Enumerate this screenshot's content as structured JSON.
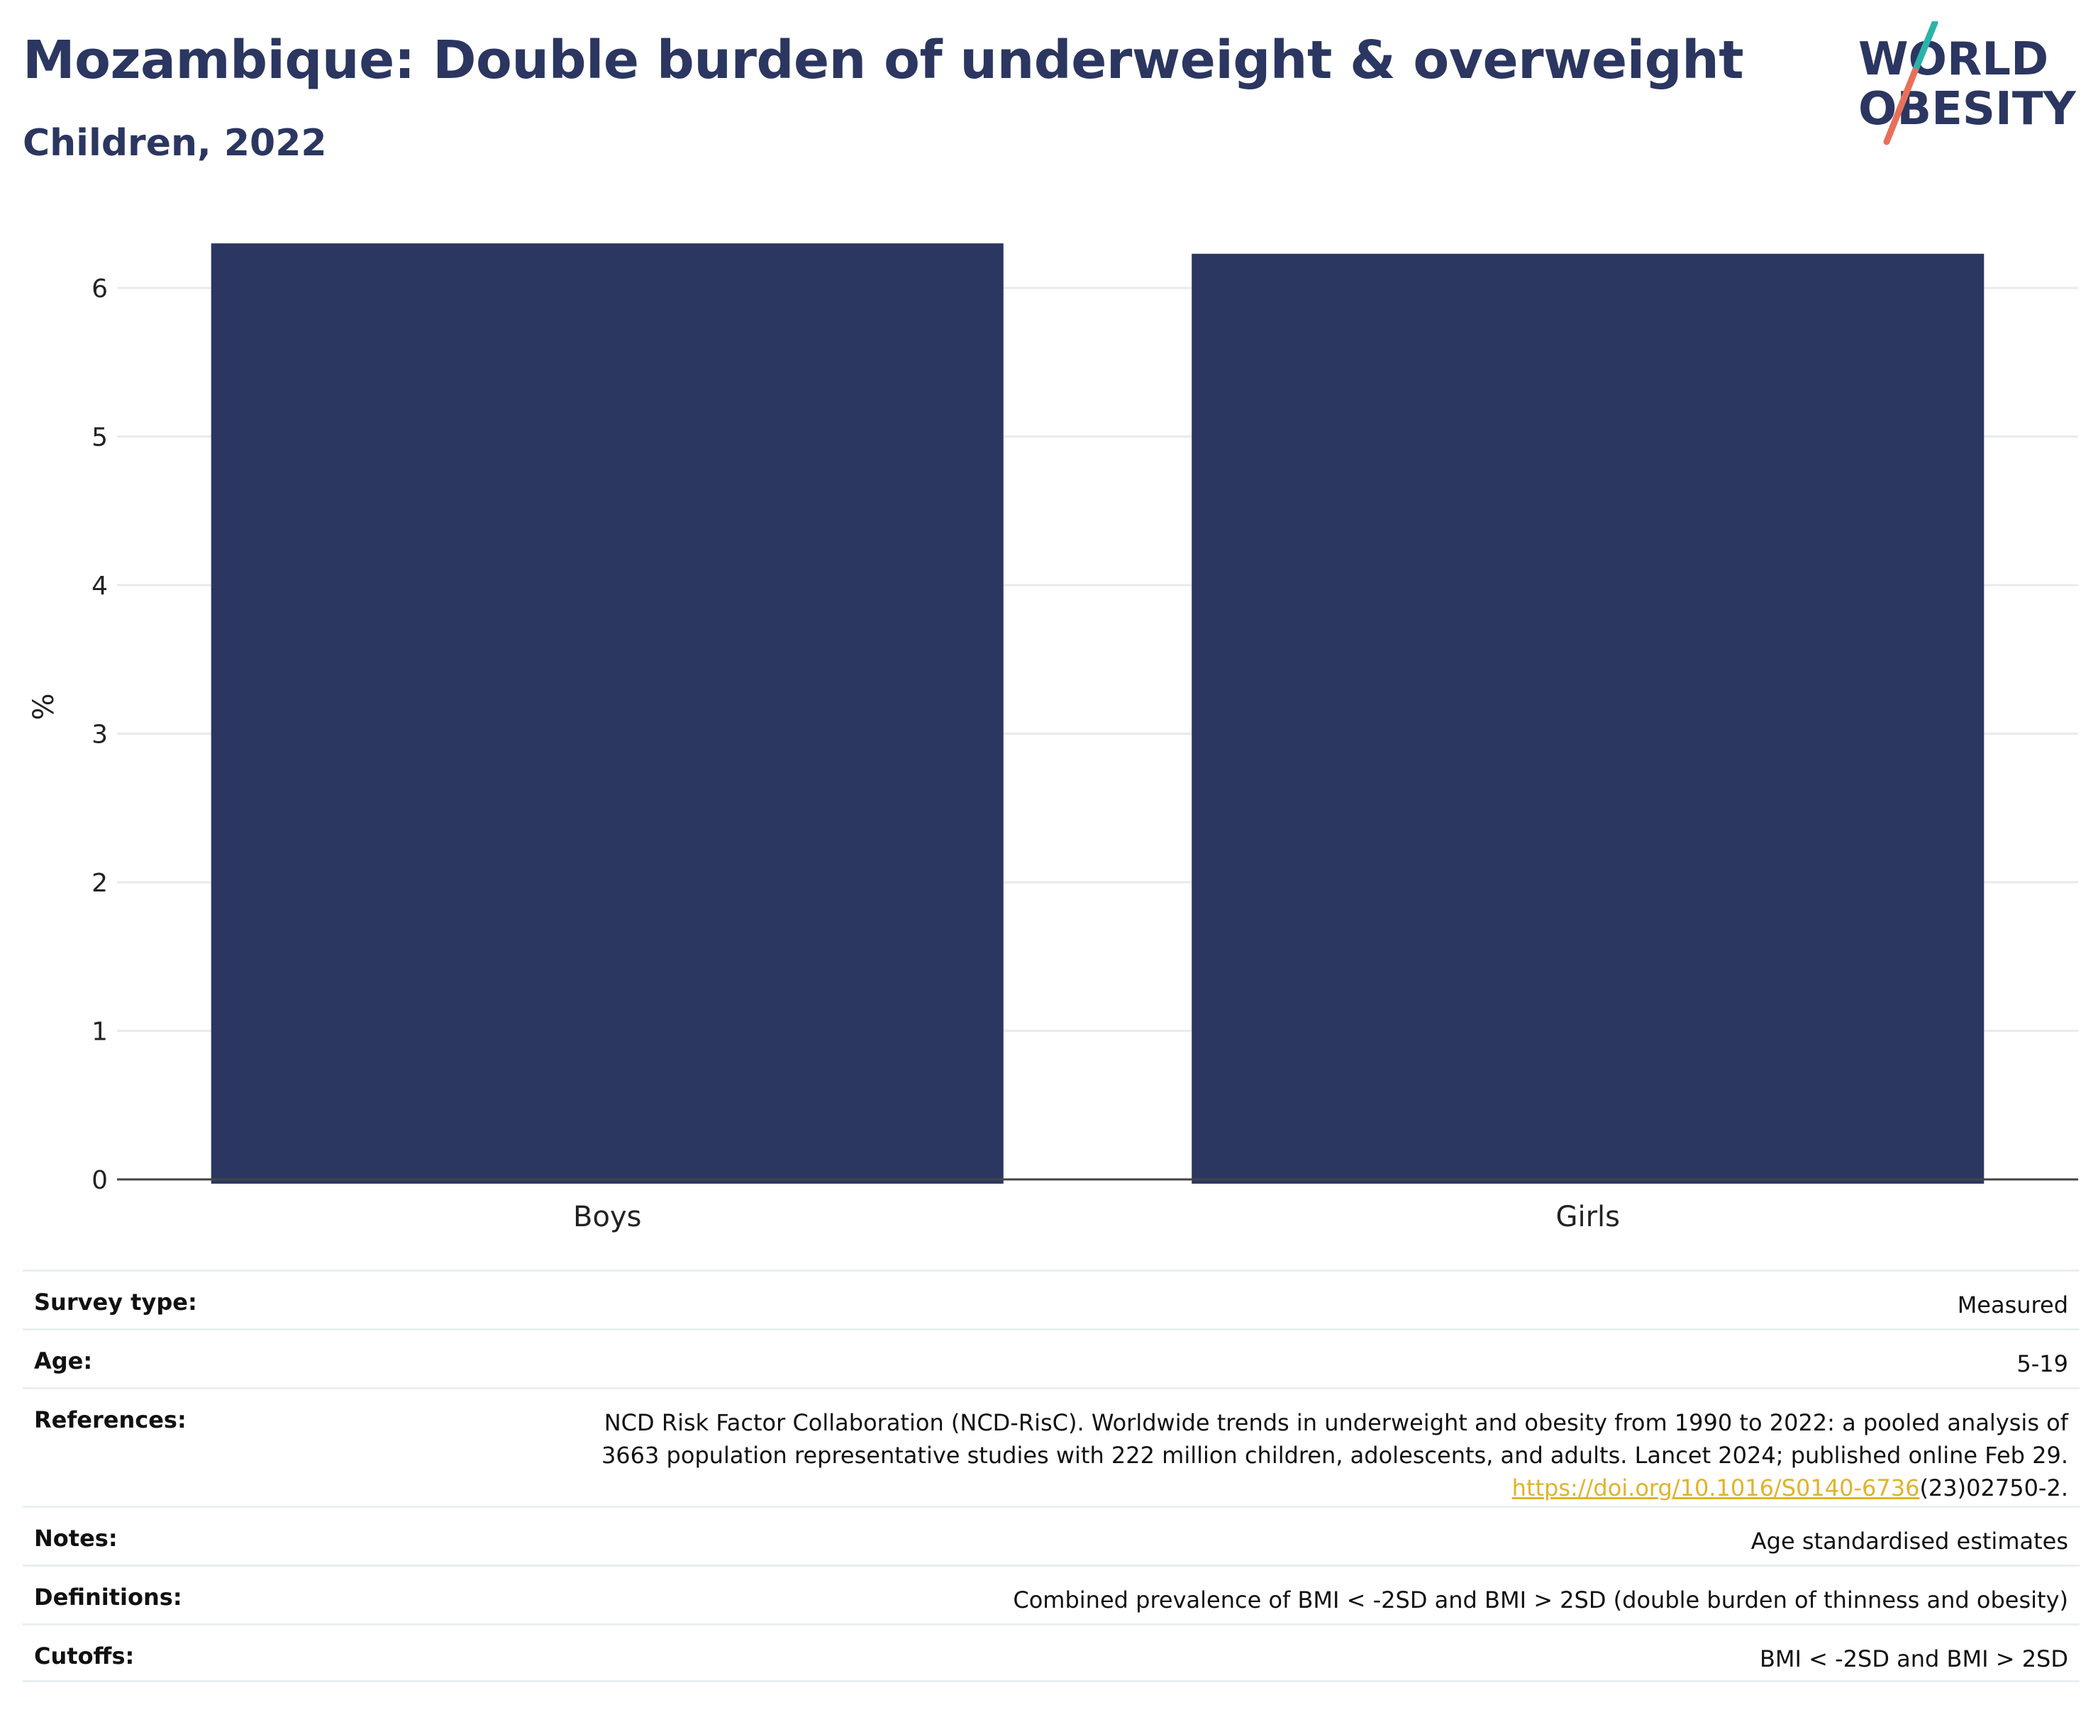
{
  "header": {
    "title": "Mozambique: Double burden of underweight & overweight",
    "subtitle": "Children, 2022"
  },
  "logo": {
    "line1": "WORLD",
    "line2": "OBESITY",
    "colors": {
      "text": "#2b3661",
      "slash_top": "#2bb3a8",
      "slash_bottom": "#e8705a"
    }
  },
  "colors": {
    "bar": "#2b3661",
    "grid": "#e8eaee",
    "axis": "#444444",
    "link": "#e0b32a"
  },
  "chart_data": {
    "type": "bar",
    "categories": [
      "Boys",
      "Girls"
    ],
    "values": [
      6.3,
      6.23
    ],
    "ylabel": "%",
    "ylim": [
      0,
      6.5
    ],
    "yticks": [
      0,
      1,
      2,
      3,
      4,
      5,
      6
    ],
    "grid": true,
    "legend": "none"
  },
  "meta": {
    "survey_type": {
      "label": "Survey type:",
      "value": "Measured"
    },
    "age": {
      "label": "Age:",
      "value": "5-19"
    },
    "references": {
      "label": "References:",
      "line1": "NCD Risk Factor Collaboration (NCD-RisC). Worldwide trends in underweight and obesity from 1990 to 2022: a pooled analysis of",
      "line2": "3663 population representative studies with 222 million children, adolescents, and adults. Lancet 2024; published online Feb 29.",
      "link": "https://doi.org/10.1016/S0140-6736",
      "suffix": "(23)02750-2."
    },
    "notes": {
      "label": "Notes:",
      "value": "Age standardised estimates"
    },
    "definitions": {
      "label": "Definitions:",
      "value": "Combined prevalence of BMI < -2SD and BMI > 2SD (double burden of thinness and obesity)"
    },
    "cutoffs": {
      "label": "Cutoffs:",
      "value": "BMI < -2SD and BMI > 2SD"
    }
  }
}
